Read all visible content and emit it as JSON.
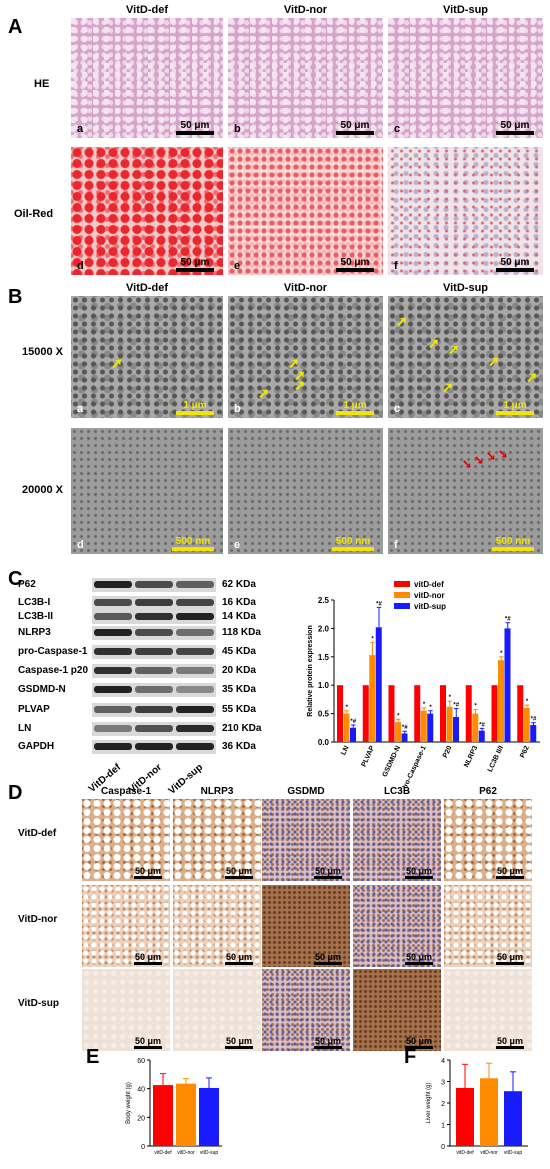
{
  "panels": {
    "A": {
      "label": "A",
      "columns": [
        "VitD-def",
        "VitD-nor",
        "VitD-sup"
      ],
      "rows": [
        "HE",
        "Oil-Red"
      ],
      "sublabels": [
        "a",
        "b",
        "c",
        "d",
        "e",
        "f"
      ],
      "scale": "50 μm"
    },
    "B": {
      "label": "B",
      "columns": [
        "VitD-def",
        "VitD-nor",
        "VitD-sup"
      ],
      "rows": [
        "15000 X",
        "20000 X"
      ],
      "sublabels": [
        "a",
        "b",
        "c",
        "d",
        "e",
        "f"
      ],
      "scales": [
        "1 μm",
        "1 μm",
        "1 μm",
        "500 nm",
        "500 nm",
        "500 nm"
      ]
    },
    "C": {
      "label": "C",
      "blot_labels": [
        "P62",
        "LC3B-I",
        "LC3B-II",
        "NLRP3",
        "pro-Caspase-1",
        "Caspase-1 p20",
        "GSDMD-N",
        "PLVAP",
        "LN",
        "GAPDH"
      ],
      "kda": [
        "62 KDa",
        "16 KDa",
        "14 KDa",
        "118 KDa",
        "45 KDa",
        "20 KDa",
        "35 KDa",
        "55 KDa",
        "210 KDa",
        "36 KDa"
      ],
      "lanes": [
        "VitD-def",
        "VitD-nor",
        "VitD-sup"
      ]
    },
    "D": {
      "label": "D",
      "columns": [
        "Caspase-1",
        "NLRP3",
        "GSDMD",
        "LC3B",
        "P62"
      ],
      "rows": [
        "VitD-def",
        "VitD-nor",
        "VitD-sup"
      ],
      "scale": "50 μm"
    },
    "E": {
      "label": "E"
    },
    "F": {
      "label": "F"
    }
  },
  "chart_data": [
    {
      "type": "bar",
      "panel": "C",
      "categories": [
        "LN",
        "PLVAP",
        "GSDMD-N",
        "Pro-Caspase-1",
        "P20",
        "NLRP3",
        "LC3B II/I",
        "P62"
      ],
      "series": [
        {
          "name": "vitD-def",
          "color": "#ff0000",
          "values": [
            1.0,
            1.0,
            1.0,
            1.0,
            1.0,
            1.0,
            1.0,
            1.0
          ],
          "errors": [
            0,
            0,
            0,
            0,
            0,
            0,
            0,
            0
          ],
          "marks": [
            "",
            "",
            "",
            "",
            "",
            "",
            "",
            ""
          ]
        },
        {
          "name": "vitD-nor",
          "color": "#ff8c00",
          "values": [
            0.5,
            1.53,
            0.35,
            0.55,
            0.62,
            0.5,
            1.44,
            0.6
          ],
          "errors": [
            0.05,
            0.22,
            0.05,
            0.05,
            0.1,
            0.07,
            0.06,
            0.05
          ],
          "marks": [
            "*",
            "*",
            "*",
            "*",
            "*",
            "*",
            "*",
            "*"
          ]
        },
        {
          "name": "vitD-sup",
          "color": "#1a1aff",
          "values": [
            0.25,
            2.02,
            0.15,
            0.5,
            0.44,
            0.2,
            2.0,
            0.3
          ],
          "errors": [
            0.05,
            0.35,
            0.04,
            0.05,
            0.15,
            0.04,
            0.1,
            0.04
          ],
          "marks": [
            "*#",
            "*#",
            "*#",
            "*",
            "*#",
            "*#",
            "*#",
            "*#"
          ]
        }
      ],
      "ylabel": "Relative protein expression",
      "ylim": [
        0,
        2.5
      ],
      "yticks": [
        "0.0",
        "0.5",
        "1.0",
        "1.5",
        "2.0",
        "2.5"
      ],
      "legend": "top-right"
    },
    {
      "type": "bar",
      "panel": "E",
      "categories": [
        "vitD-def",
        "vitD-nor",
        "vitD-sup"
      ],
      "colors": [
        "#ff0000",
        "#ff8c00",
        "#1a1aff"
      ],
      "values": [
        42.5,
        43.5,
        40.5
      ],
      "errors": [
        8,
        3.5,
        7
      ],
      "ylabel": "Body weight (g)",
      "ylim": [
        0,
        60
      ],
      "yticks": [
        "0",
        "20",
        "40",
        "60"
      ]
    },
    {
      "type": "bar",
      "panel": "F",
      "categories": [
        "vitD-def",
        "vitD-nor",
        "vitD-sup"
      ],
      "colors": [
        "#ff0000",
        "#ff8c00",
        "#1a1aff"
      ],
      "values": [
        2.7,
        3.15,
        2.55
      ],
      "errors": [
        1.1,
        0.7,
        0.9
      ],
      "ylabel": "Liver weight (g)",
      "ylim": [
        0,
        4
      ],
      "yticks": [
        "0",
        "1",
        "2",
        "3",
        "4"
      ]
    }
  ]
}
